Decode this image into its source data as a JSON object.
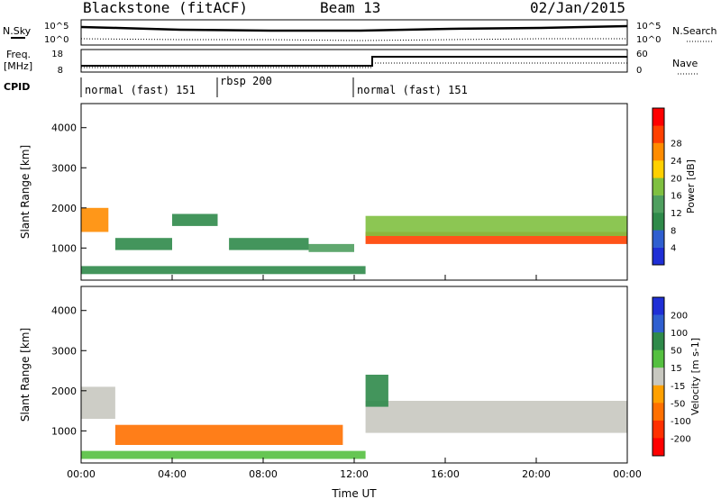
{
  "header": {
    "station": "Blackstone (fitACF)",
    "beam": "Beam 13",
    "date": "02/Jan/2015"
  },
  "side_labels": {
    "nsky": "N.Sky",
    "freq_line1": "Freq.",
    "freq_line2": "[MHz]",
    "cpid": "CPID",
    "nsearch": "N.Search",
    "nave": "Nave"
  },
  "noise_panel": {
    "left_ticks": [
      "10^5",
      "10^0"
    ],
    "right_ticks": [
      "10^5",
      "10^0"
    ]
  },
  "freq_panel": {
    "left_ticks": [
      "18",
      "8"
    ],
    "right_ticks": [
      "60",
      "0"
    ]
  },
  "cpid_segments": [
    {
      "label": "normal (fast) 151",
      "start_hour": 0
    },
    {
      "label": "rbsp 200",
      "start_hour": 6
    },
    {
      "label": "normal (fast) 151",
      "start_hour": 12.1
    }
  ],
  "colors": {
    "power": [
      "#1f2fd6",
      "#2f5fd0",
      "#2f8a4a",
      "#4f9f5f",
      "#7fc040",
      "#ffd000",
      "#ff8c00",
      "#ff4000",
      "#ff0000"
    ],
    "velocity": [
      "#1f2fd6",
      "#2f5fd0",
      "#2f8a4a",
      "#55c040",
      "#c8c8c0",
      "#ffa000",
      "#ff7000",
      "#ff3000",
      "#ff0000"
    ]
  },
  "chart_data": [
    {
      "type": "heatmap",
      "quantity": "Power",
      "xlabel": "Time UT",
      "ylabel": "Slant Range [km]",
      "x_ticks": [
        "00:00",
        "04:00",
        "08:00",
        "12:00",
        "16:00",
        "20:00",
        "00:00"
      ],
      "y_ticks": [
        "1000",
        "2000",
        "3000",
        "4000"
      ],
      "ylim": [
        200,
        4600
      ],
      "colorbar_label": "Power [dB]",
      "colorbar_ticks": [
        "4",
        "8",
        "12",
        "16",
        "20",
        "24",
        "28"
      ],
      "features": [
        {
          "start_h": 12.5,
          "end_h": 24.0,
          "range_center_km": 1250,
          "range_width_km": 300,
          "value_db": 28
        },
        {
          "start_h": 12.5,
          "end_h": 24.0,
          "range_center_km": 1550,
          "range_width_km": 500,
          "value_db": 14
        },
        {
          "start_h": 0.0,
          "end_h": 1.2,
          "range_center_km": 1700,
          "range_width_km": 600,
          "value_db": 24
        },
        {
          "start_h": 1.5,
          "end_h": 4.0,
          "range_center_km": 1100,
          "range_width_km": 300,
          "value_db": 6
        },
        {
          "start_h": 4.0,
          "end_h": 6.0,
          "range_center_km": 1700,
          "range_width_km": 300,
          "value_db": 6
        },
        {
          "start_h": 6.5,
          "end_h": 10.0,
          "range_center_km": 1100,
          "range_width_km": 300,
          "value_db": 6
        },
        {
          "start_h": 10.0,
          "end_h": 12.0,
          "range_center_km": 1000,
          "range_width_km": 200,
          "value_db": 10
        },
        {
          "start_h": 0.0,
          "end_h": 12.5,
          "range_center_km": 450,
          "range_width_km": 200,
          "value_db": 6
        }
      ]
    },
    {
      "type": "heatmap",
      "quantity": "Velocity",
      "xlabel": "Time UT",
      "ylabel": "Slant Range [km]",
      "x_ticks": [
        "00:00",
        "04:00",
        "08:00",
        "12:00",
        "16:00",
        "20:00",
        "00:00"
      ],
      "y_ticks": [
        "1000",
        "2000",
        "3000",
        "4000"
      ],
      "ylim": [
        200,
        4600
      ],
      "colorbar_label": "Velocity [m s-1]",
      "colorbar_ticks": [
        "200",
        "100",
        "50",
        "15",
        "-15",
        "-50",
        "-100",
        "-200"
      ],
      "features": [
        {
          "start_h": 0.0,
          "end_h": 1.5,
          "range_center_km": 1700,
          "range_width_km": 800,
          "value_ms": 0
        },
        {
          "start_h": 12.5,
          "end_h": 24.0,
          "range_center_km": 1350,
          "range_width_km": 800,
          "value_ms": 0
        },
        {
          "start_h": 1.5,
          "end_h": 11.5,
          "range_center_km": 900,
          "range_width_km": 500,
          "value_ms": -60
        },
        {
          "start_h": 0.0,
          "end_h": 12.5,
          "range_center_km": 400,
          "range_width_km": 200,
          "value_ms": 30
        },
        {
          "start_h": 12.5,
          "end_h": 13.5,
          "range_center_km": 2000,
          "range_width_km": 800,
          "value_ms": 60
        }
      ]
    }
  ]
}
